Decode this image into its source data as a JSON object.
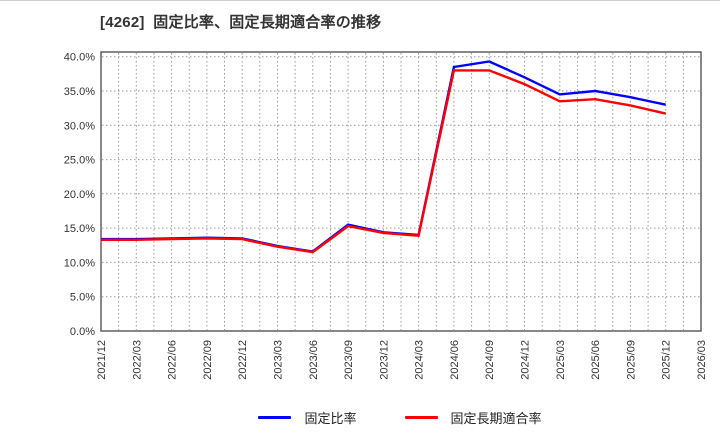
{
  "figure": {
    "title": "[4262]  固定比率、固定長期適合率の推移"
  },
  "chart_data": {
    "type": "line",
    "title": "[4262]  固定比率、固定長期適合率の推移",
    "categories": [
      "2021/12",
      "2022/03",
      "2022/06",
      "2022/09",
      "2022/12",
      "2023/03",
      "2023/06",
      "2023/09",
      "2023/12",
      "2024/03",
      "2024/06",
      "2024/09",
      "2024/12",
      "2025/03",
      "2025/06",
      "2025/09",
      "2025/12",
      "2026/03"
    ],
    "series": [
      {
        "key": "fixed-ratio",
        "name": "固定比率",
        "color": "#0000ff",
        "values": [
          13.4,
          13.4,
          13.5,
          13.6,
          13.5,
          12.4,
          11.6,
          15.5,
          14.4,
          14.0,
          38.5,
          39.3,
          37.0,
          34.5,
          35.0,
          34.1,
          33.0
        ]
      },
      {
        "key": "fixed-long-term-ratio",
        "name": "固定長期適合率",
        "color": "#ff0000",
        "values": [
          13.3,
          13.3,
          13.4,
          13.5,
          13.4,
          12.3,
          11.5,
          15.3,
          14.3,
          13.9,
          38.0,
          38.0,
          36.0,
          33.5,
          33.8,
          32.9,
          31.7
        ]
      }
    ],
    "ylim": [
      0,
      40
    ],
    "ytick_step": 5,
    "yticks": [
      "40.0%",
      "35.0%",
      "30.0%",
      "25.0%",
      "20.0%",
      "15.0%",
      "10.0%",
      "5.0%",
      "0.0%"
    ],
    "xlabel": "",
    "ylabel": "",
    "grid": "dotted gray; horizontal every 5%, vertical every half category",
    "legend_position": "bottom-center",
    "colors": {
      "grid": "#999999",
      "frame": "#555555",
      "tick_text": "#333333",
      "title_text": "#333333"
    }
  }
}
